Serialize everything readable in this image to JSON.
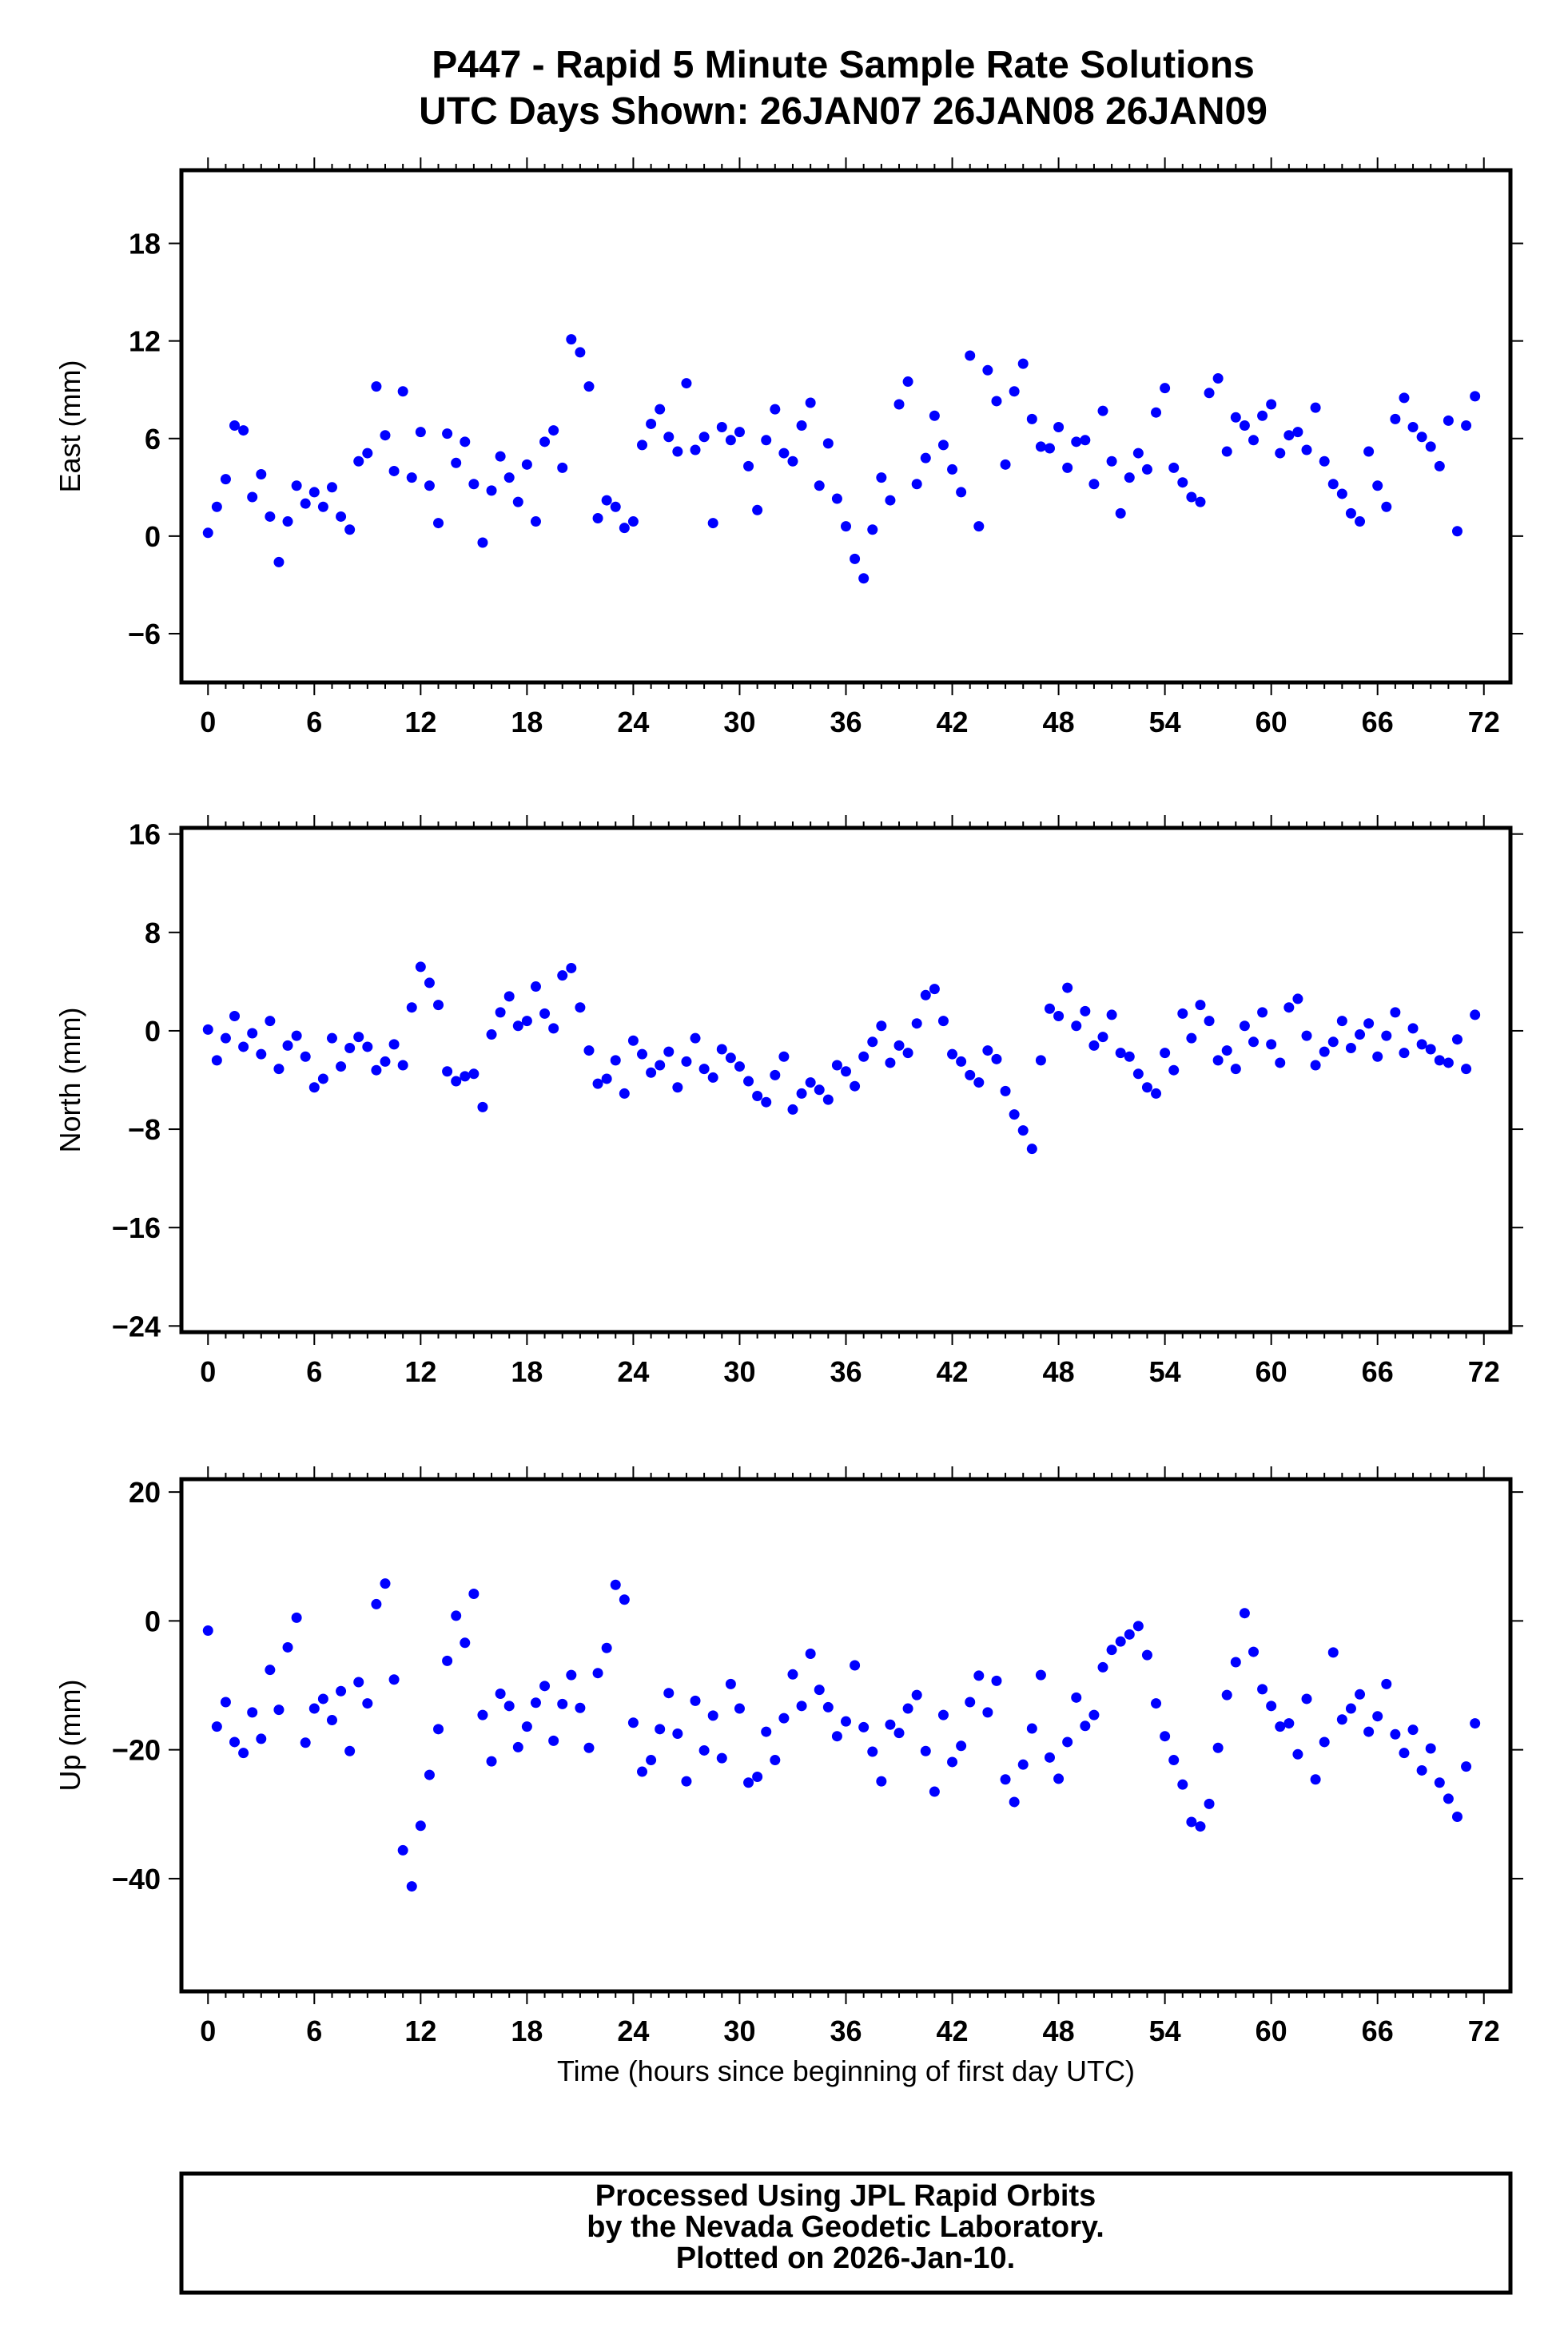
{
  "header": {
    "title_line1": "P447 - Rapid 5 Minute Sample Rate Solutions",
    "title_line2": "UTC Days Shown:  26JAN07 26JAN08 26JAN09"
  },
  "footer": {
    "line1": "Processed Using JPL Rapid Orbits",
    "line2": "by the Nevada Geodetic Laboratory.",
    "line3": "Plotted on 2026-Jan-10."
  },
  "chart_data": [
    {
      "type": "scatter",
      "ylabel": "East (mm)",
      "xlabel": "",
      "xlim": [
        -1.5,
        73.5
      ],
      "ylim": [
        -9,
        22.5
      ],
      "xticks": [
        0,
        6,
        12,
        18,
        24,
        30,
        36,
        42,
        48,
        54,
        60,
        66,
        72
      ],
      "yticks": [
        -6,
        0,
        6,
        12,
        18
      ],
      "marker_color": "#0000ff",
      "x": [
        0.0,
        0.5,
        1.0,
        1.5,
        2.0,
        2.5,
        3.0,
        3.5,
        4.0,
        4.5,
        5.0,
        5.5,
        6.0,
        6.5,
        7.0,
        7.5,
        8.0,
        8.5,
        9.0,
        9.5,
        10.0,
        10.5,
        11.0,
        11.5,
        12.0,
        12.5,
        13.0,
        13.5,
        14.0,
        14.5,
        15.0,
        15.5,
        16.0,
        16.5,
        17.0,
        17.5,
        18.0,
        18.5,
        19.0,
        19.5,
        20.0,
        20.5,
        21.0,
        21.5,
        22.0,
        22.5,
        23.0,
        23.5,
        24.0,
        24.5,
        25.0,
        25.5,
        26.0,
        26.5,
        27.0,
        27.5,
        28.0,
        28.5,
        29.0,
        29.5,
        30.0,
        30.5,
        31.0,
        31.5,
        32.0,
        32.5,
        33.0,
        33.5,
        34.0,
        34.5,
        35.0,
        35.5,
        36.0,
        36.5,
        37.0,
        37.5,
        38.0,
        38.5,
        39.0,
        39.5,
        40.0,
        40.5,
        41.0,
        41.5,
        42.0,
        42.5,
        43.0,
        43.5,
        44.0,
        44.5,
        45.0,
        45.5,
        46.0,
        46.5,
        47.0,
        47.5,
        48.0,
        48.5,
        49.0,
        49.5,
        50.0,
        50.5,
        51.0,
        51.5,
        52.0,
        52.5,
        53.0,
        53.5,
        54.0,
        54.5,
        55.0,
        55.5,
        56.0,
        56.5,
        57.0,
        57.5,
        58.0,
        58.5,
        59.0,
        59.5,
        60.0,
        60.5,
        61.0,
        61.5,
        62.0,
        62.5,
        63.0,
        63.5,
        64.0,
        64.5,
        65.0,
        65.5,
        66.0,
        66.5,
        67.0,
        67.5,
        68.0,
        68.5,
        69.0,
        69.5,
        70.0,
        70.5,
        71.0,
        71.5
      ],
      "y": [
        0.2,
        1.8,
        3.5,
        6.8,
        6.5,
        2.4,
        3.8,
        1.2,
        -1.6,
        0.9,
        3.1,
        2.0,
        2.7,
        1.8,
        3.0,
        1.2,
        0.4,
        4.6,
        5.1,
        9.2,
        6.2,
        4.0,
        8.9,
        3.6,
        6.4,
        3.1,
        0.8,
        6.3,
        4.5,
        5.8,
        3.2,
        -0.4,
        2.8,
        4.9,
        3.6,
        2.1,
        4.4,
        0.9,
        5.8,
        6.5,
        4.2,
        12.1,
        11.3,
        9.2,
        1.1,
        2.2,
        1.8,
        0.5,
        0.9,
        5.6,
        6.9,
        7.8,
        6.1,
        5.2,
        9.4,
        5.3,
        6.1,
        0.8,
        6.7,
        5.9,
        6.4,
        4.3,
        1.6,
        5.9,
        7.8,
        5.1,
        4.6,
        6.8,
        8.2,
        3.1,
        5.7,
        2.3,
        0.6,
        -1.4,
        -2.6,
        0.4,
        3.6,
        2.2,
        8.1,
        9.5,
        3.2,
        4.8,
        7.4,
        5.6,
        4.1,
        2.7,
        11.1,
        0.6,
        10.2,
        8.3,
        4.4,
        8.9,
        10.6,
        7.2,
        5.5,
        5.4,
        6.7,
        4.2,
        5.8,
        5.9,
        3.2,
        7.7,
        4.6,
        1.4,
        3.6,
        5.1,
        4.1,
        7.6,
        9.1,
        4.2,
        3.3,
        2.4,
        2.1,
        8.8,
        9.7,
        5.2,
        7.3,
        6.8,
        5.9,
        7.4,
        8.1,
        5.1,
        6.2,
        6.4,
        5.3,
        7.9,
        4.6,
        3.2,
        2.6,
        1.4,
        0.9,
        5.2,
        3.1,
        1.8,
        7.2,
        8.5,
        6.7,
        6.1,
        5.5,
        4.3,
        7.1,
        0.3,
        6.8,
        8.6
      ]
    },
    {
      "type": "scatter",
      "ylabel": "North (mm)",
      "xlabel": "",
      "xlim": [
        -1.5,
        73.5
      ],
      "ylim": [
        -24.5,
        16.5
      ],
      "xticks": [
        0,
        6,
        12,
        18,
        24,
        30,
        36,
        42,
        48,
        54,
        60,
        66,
        72
      ],
      "yticks": [
        -24,
        -16,
        -8,
        0,
        8,
        16
      ],
      "marker_color": "#0000ff",
      "x": [
        0.0,
        0.5,
        1.0,
        1.5,
        2.0,
        2.5,
        3.0,
        3.5,
        4.0,
        4.5,
        5.0,
        5.5,
        6.0,
        6.5,
        7.0,
        7.5,
        8.0,
        8.5,
        9.0,
        9.5,
        10.0,
        10.5,
        11.0,
        11.5,
        12.0,
        12.5,
        13.0,
        13.5,
        14.0,
        14.5,
        15.0,
        15.5,
        16.0,
        16.5,
        17.0,
        17.5,
        18.0,
        18.5,
        19.0,
        19.5,
        20.0,
        20.5,
        21.0,
        21.5,
        22.0,
        22.5,
        23.0,
        23.5,
        24.0,
        24.5,
        25.0,
        25.5,
        26.0,
        26.5,
        27.0,
        27.5,
        28.0,
        28.5,
        29.0,
        29.5,
        30.0,
        30.5,
        31.0,
        31.5,
        32.0,
        32.5,
        33.0,
        33.5,
        34.0,
        34.5,
        35.0,
        35.5,
        36.0,
        36.5,
        37.0,
        37.5,
        38.0,
        38.5,
        39.0,
        39.5,
        40.0,
        40.5,
        41.0,
        41.5,
        42.0,
        42.5,
        43.0,
        43.5,
        44.0,
        44.5,
        45.0,
        45.5,
        46.0,
        46.5,
        47.0,
        47.5,
        48.0,
        48.5,
        49.0,
        49.5,
        50.0,
        50.5,
        51.0,
        51.5,
        52.0,
        52.5,
        53.0,
        53.5,
        54.0,
        54.5,
        55.0,
        55.5,
        56.0,
        56.5,
        57.0,
        57.5,
        58.0,
        58.5,
        59.0,
        59.5,
        60.0,
        60.5,
        61.0,
        61.5,
        62.0,
        62.5,
        63.0,
        63.5,
        64.0,
        64.5,
        65.0,
        65.5,
        66.0,
        66.5,
        67.0,
        67.5,
        68.0,
        68.5,
        69.0,
        69.5,
        70.0,
        70.5,
        71.0,
        71.5
      ],
      "y": [
        0.1,
        -2.4,
        -0.6,
        1.2,
        -1.3,
        -0.2,
        -1.9,
        0.8,
        -3.1,
        -1.2,
        -0.4,
        -2.1,
        -4.6,
        -3.9,
        -0.6,
        -2.9,
        -1.4,
        -0.5,
        -1.3,
        -3.2,
        -2.5,
        -1.1,
        -2.8,
        1.9,
        5.2,
        3.9,
        2.1,
        -3.3,
        -4.1,
        -3.7,
        -3.5,
        -6.2,
        -0.3,
        1.5,
        2.8,
        0.4,
        0.8,
        3.6,
        1.4,
        0.2,
        4.5,
        5.1,
        1.9,
        -1.6,
        -4.3,
        -3.9,
        -2.4,
        -5.1,
        -0.8,
        -1.9,
        -3.4,
        -2.8,
        -1.7,
        -4.6,
        -2.5,
        -0.6,
        -3.1,
        -3.8,
        -1.5,
        -2.2,
        -2.9,
        -4.1,
        -5.3,
        -5.8,
        -3.6,
        -2.1,
        -6.4,
        -5.1,
        -4.2,
        -4.8,
        -5.6,
        -2.8,
        -3.3,
        -4.5,
        -2.1,
        -0.9,
        0.4,
        -2.6,
        -1.2,
        -1.8,
        0.6,
        2.9,
        3.4,
        0.8,
        -1.9,
        -2.5,
        -3.6,
        -4.2,
        -1.6,
        -2.3,
        -4.9,
        -6.8,
        -8.1,
        -9.6,
        -2.4,
        1.8,
        1.2,
        3.5,
        0.4,
        1.6,
        -1.2,
        -0.5,
        1.3,
        -1.8,
        -2.1,
        -3.5,
        -4.6,
        -5.1,
        -1.8,
        -3.2,
        1.4,
        -0.6,
        2.1,
        0.8,
        -2.4,
        -1.6,
        -3.1,
        0.4,
        -0.9,
        1.5,
        -1.1,
        -2.6,
        1.9,
        2.6,
        -0.4,
        -2.8,
        -1.7,
        -0.9,
        0.8,
        -1.4,
        -0.3,
        0.6,
        -2.1,
        -0.4,
        1.5,
        -1.8,
        0.2,
        -1.1,
        -1.5,
        -2.4,
        -2.6,
        -0.7,
        -3.1,
        1.3
      ]
    },
    {
      "type": "scatter",
      "ylabel": "Up (mm)",
      "xlabel": "Time (hours since beginning of first day UTC)",
      "xlim": [
        -1.5,
        73.5
      ],
      "ylim": [
        -57.5,
        22
      ],
      "xticks": [
        0,
        6,
        12,
        18,
        24,
        30,
        36,
        42,
        48,
        54,
        60,
        66,
        72
      ],
      "yticks": [
        -40,
        -20,
        0,
        20
      ],
      "marker_color": "#0000ff",
      "x": [
        0.0,
        0.5,
        1.0,
        1.5,
        2.0,
        2.5,
        3.0,
        3.5,
        4.0,
        4.5,
        5.0,
        5.5,
        6.0,
        6.5,
        7.0,
        7.5,
        8.0,
        8.5,
        9.0,
        9.5,
        10.0,
        10.5,
        11.0,
        11.5,
        12.0,
        12.5,
        13.0,
        13.5,
        14.0,
        14.5,
        15.0,
        15.5,
        16.0,
        16.5,
        17.0,
        17.5,
        18.0,
        18.5,
        19.0,
        19.5,
        20.0,
        20.5,
        21.0,
        21.5,
        22.0,
        22.5,
        23.0,
        23.5,
        24.0,
        24.5,
        25.0,
        25.5,
        26.0,
        26.5,
        27.0,
        27.5,
        28.0,
        28.5,
        29.0,
        29.5,
        30.0,
        30.5,
        31.0,
        31.5,
        32.0,
        32.5,
        33.0,
        33.5,
        34.0,
        34.5,
        35.0,
        35.5,
        36.0,
        36.5,
        37.0,
        37.5,
        38.0,
        38.5,
        39.0,
        39.5,
        40.0,
        40.5,
        41.0,
        41.5,
        42.0,
        42.5,
        43.0,
        43.5,
        44.0,
        44.5,
        45.0,
        45.5,
        46.0,
        46.5,
        47.0,
        47.5,
        48.0,
        48.5,
        49.0,
        49.5,
        50.0,
        50.5,
        51.0,
        51.5,
        52.0,
        52.5,
        53.0,
        53.5,
        54.0,
        54.5,
        55.0,
        55.5,
        56.0,
        56.5,
        57.0,
        57.5,
        58.0,
        58.5,
        59.0,
        59.5,
        60.0,
        60.5,
        61.0,
        61.5,
        62.0,
        62.5,
        63.0,
        63.5,
        64.0,
        64.5,
        65.0,
        65.5,
        66.0,
        66.5,
        67.0,
        67.5,
        68.0,
        68.5,
        69.0,
        69.5,
        70.0,
        70.5,
        71.0,
        71.5
      ],
      "y": [
        -1.5,
        -16.4,
        -12.6,
        -18.8,
        -20.5,
        -14.2,
        -18.3,
        -7.6,
        -13.8,
        -4.1,
        0.5,
        -18.9,
        -13.6,
        -12.1,
        -15.4,
        -10.9,
        -20.2,
        -9.5,
        -12.8,
        2.6,
        5.8,
        -9.1,
        -35.6,
        -41.2,
        -31.8,
        -23.9,
        -16.8,
        -6.2,
        0.8,
        -3.4,
        4.2,
        -14.6,
        -21.8,
        -11.3,
        -13.2,
        -19.6,
        -16.4,
        -12.7,
        -10.1,
        -18.6,
        -12.9,
        -8.4,
        -13.5,
        -19.7,
        -8.1,
        -4.2,
        5.6,
        3.3,
        -15.8,
        -23.4,
        -21.6,
        -16.8,
        -11.2,
        -17.5,
        -24.9,
        -12.4,
        -20.1,
        -14.7,
        -21.3,
        -9.8,
        -13.6,
        -25.1,
        -24.2,
        -17.2,
        -21.6,
        -15.1,
        -8.3,
        -13.2,
        -5.1,
        -10.7,
        -13.4,
        -17.9,
        -15.6,
        -6.9,
        -16.5,
        -20.3,
        -24.9,
        -16.1,
        -17.4,
        -13.6,
        -11.5,
        -20.2,
        -26.5,
        -14.6,
        -21.9,
        -19.4,
        -12.6,
        -8.5,
        -14.2,
        -9.3,
        -24.6,
        -28.1,
        -22.3,
        -16.7,
        -8.4,
        -21.2,
        -24.5,
        -18.8,
        -11.9,
        -16.3,
        -14.6,
        -7.2,
        -4.5,
        -3.2,
        -2.1,
        -0.8,
        -5.3,
        -12.8,
        -17.9,
        -21.6,
        -25.4,
        -31.2,
        -31.9,
        -28.4,
        -19.7,
        -11.5,
        -6.4,
        1.2,
        -4.8,
        -10.6,
        -13.2,
        -16.4,
        -15.9,
        -20.7,
        -12.1,
        -24.6,
        -18.8,
        -4.9,
        -15.3,
        -13.6,
        -11.4,
        -17.2,
        -14.8,
        -9.8,
        -17.6,
        -20.5,
        -16.9,
        -23.2,
        -19.8,
        -25.1,
        -27.6,
        -30.4,
        -22.6,
        -15.9
      ]
    }
  ]
}
